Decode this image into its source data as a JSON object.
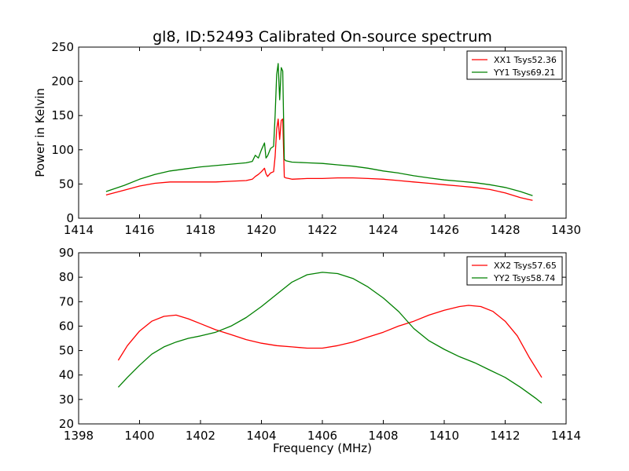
{
  "chart_data": [
    {
      "type": "line",
      "title": "gl8, ID:52493 Calibrated On-source spectrum",
      "xlabel": "",
      "ylabel": "Power in Kelvin",
      "xlim": [
        1414,
        1430
      ],
      "ylim": [
        0,
        250
      ],
      "x_ticks": [
        1414,
        1416,
        1418,
        1420,
        1422,
        1424,
        1426,
        1428,
        1430
      ],
      "y_ticks": [
        0,
        50,
        100,
        150,
        200,
        250
      ],
      "x_tick_labels": [
        "1414",
        "1416",
        "1418",
        "1420",
        "1422",
        "1424",
        "1426",
        "1428",
        "1430"
      ],
      "y_tick_labels": [
        "0",
        "50",
        "100",
        "150",
        "200",
        "250"
      ],
      "grid": false,
      "legend_position": "top-right",
      "series": [
        {
          "name": "XX1 Tsys52.36",
          "color": "#ff0000",
          "x": [
            1414.9,
            1415.5,
            1416.0,
            1416.5,
            1417.0,
            1417.5,
            1418.0,
            1418.5,
            1419.0,
            1419.5,
            1419.7,
            1419.8,
            1419.9,
            1420.0,
            1420.1,
            1420.15,
            1420.2,
            1420.3,
            1420.4,
            1420.45,
            1420.5,
            1420.55,
            1420.6,
            1420.65,
            1420.7,
            1420.75,
            1420.8,
            1420.9,
            1421.0,
            1421.5,
            1422.0,
            1422.5,
            1423.0,
            1423.5,
            1424.0,
            1424.5,
            1425.0,
            1425.5,
            1426.0,
            1426.5,
            1427.0,
            1427.5,
            1428.0,
            1428.5,
            1428.9
          ],
          "values": [
            34,
            41,
            47,
            51,
            53,
            53,
            53,
            53,
            54,
            55,
            57,
            61,
            64,
            68,
            73,
            65,
            61,
            66,
            68,
            90,
            130,
            145,
            115,
            143,
            145,
            60,
            59,
            58,
            57,
            58,
            58,
            59,
            59,
            58,
            57,
            55,
            53,
            51,
            49,
            47,
            45,
            42,
            37,
            30,
            26
          ]
        },
        {
          "name": "YY1 Tsys69.21",
          "color": "#008000",
          "x": [
            1414.9,
            1415.5,
            1416.0,
            1416.5,
            1417.0,
            1417.5,
            1418.0,
            1418.5,
            1419.0,
            1419.5,
            1419.7,
            1419.8,
            1419.9,
            1420.0,
            1420.1,
            1420.15,
            1420.2,
            1420.3,
            1420.4,
            1420.45,
            1420.5,
            1420.55,
            1420.6,
            1420.65,
            1420.7,
            1420.75,
            1420.8,
            1420.9,
            1421.0,
            1421.5,
            1422.0,
            1422.5,
            1423.0,
            1423.5,
            1424.0,
            1424.5,
            1425.0,
            1425.5,
            1426.0,
            1426.5,
            1427.0,
            1427.5,
            1428.0,
            1428.5,
            1428.9
          ],
          "values": [
            39,
            48,
            57,
            64,
            69,
            72,
            75,
            77,
            79,
            81,
            83,
            92,
            88,
            100,
            110,
            88,
            91,
            102,
            105,
            150,
            210,
            226,
            173,
            220,
            215,
            86,
            84,
            83,
            82,
            81,
            80,
            78,
            76,
            73,
            69,
            66,
            62,
            59,
            56,
            54,
            52,
            49,
            45,
            39,
            33
          ]
        }
      ]
    },
    {
      "type": "line",
      "title": "",
      "xlabel": "Frequency (MHz)",
      "ylabel": "",
      "xlim": [
        1398,
        1414
      ],
      "ylim": [
        20,
        90
      ],
      "x_ticks": [
        1398,
        1400,
        1402,
        1404,
        1406,
        1408,
        1410,
        1412,
        1414
      ],
      "y_ticks": [
        20,
        30,
        40,
        50,
        60,
        70,
        80,
        90
      ],
      "x_tick_labels": [
        "1398",
        "1400",
        "1402",
        "1404",
        "1406",
        "1408",
        "1410",
        "1412",
        "1414"
      ],
      "y_tick_labels": [
        "20",
        "30",
        "40",
        "50",
        "60",
        "70",
        "80",
        "90"
      ],
      "grid": false,
      "legend_position": "top-right",
      "series": [
        {
          "name": "XX2 Tsys57.65",
          "color": "#ff0000",
          "x": [
            1399.3,
            1399.6,
            1400.0,
            1400.4,
            1400.8,
            1401.2,
            1401.6,
            1402.0,
            1402.5,
            1403.0,
            1403.5,
            1404.0,
            1404.5,
            1405.0,
            1405.5,
            1406.0,
            1406.5,
            1407.0,
            1407.5,
            1408.0,
            1408.5,
            1409.0,
            1409.5,
            1410.0,
            1410.5,
            1410.8,
            1411.2,
            1411.6,
            1412.0,
            1412.4,
            1412.8,
            1413.2
          ],
          "values": [
            46,
            52,
            58,
            62,
            64,
            64.5,
            63,
            61,
            58.5,
            56.5,
            54.5,
            53,
            52,
            51.5,
            51,
            51,
            52,
            53.5,
            55.5,
            57.5,
            60,
            62,
            64.5,
            66.5,
            68,
            68.5,
            68,
            66,
            62,
            56,
            47,
            39
          ]
        },
        {
          "name": "YY2 Tsys58.74",
          "color": "#008000",
          "x": [
            1399.3,
            1399.6,
            1400.0,
            1400.4,
            1400.8,
            1401.2,
            1401.6,
            1402.0,
            1402.5,
            1403.0,
            1403.5,
            1404.0,
            1404.5,
            1405.0,
            1405.5,
            1406.0,
            1406.5,
            1407.0,
            1407.5,
            1408.0,
            1408.5,
            1409.0,
            1409.5,
            1410.0,
            1410.5,
            1411.0,
            1411.5,
            1412.0,
            1412.5,
            1413.0,
            1413.2
          ],
          "values": [
            35,
            39,
            44,
            48.5,
            51.5,
            53.5,
            55,
            56,
            57.5,
            60,
            63.5,
            68,
            73,
            78,
            81,
            82,
            81.5,
            79.5,
            76,
            71.5,
            66,
            59,
            54,
            50.5,
            47.5,
            45,
            42,
            39,
            35,
            30.5,
            28.5
          ]
        }
      ]
    }
  ]
}
